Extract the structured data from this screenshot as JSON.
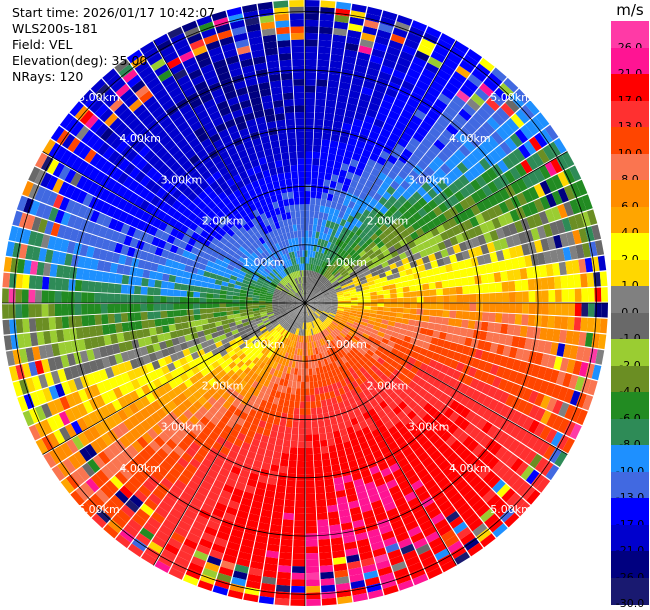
{
  "header": {
    "start_time": "Start time: 2026/01/17 10:42:07",
    "instrument": "WLS200s-181",
    "field": "Field: VEL",
    "elevation": "Elevation(deg): 35.00",
    "nrays": "NRays: 120"
  },
  "colorbar": {
    "unit": "m/s",
    "levels": [
      {
        "label": "26.0",
        "color": "#ff3aa6"
      },
      {
        "label": "21.0",
        "color": "#ff1493"
      },
      {
        "label": "17.0",
        "color": "#ff0000"
      },
      {
        "label": "13.0",
        "color": "#ff3030"
      },
      {
        "label": "10.0",
        "color": "#ff4500"
      },
      {
        "label": "8.0",
        "color": "#fa7550"
      },
      {
        "label": "6.0",
        "color": "#ff8c00"
      },
      {
        "label": "4.0",
        "color": "#ffa500"
      },
      {
        "label": "2.0",
        "color": "#ffff00"
      },
      {
        "label": "1.0",
        "color": "#ffd700"
      },
      {
        "label": "0.0",
        "color": "#808080"
      },
      {
        "label": "-1.0",
        "color": "#696969"
      },
      {
        "label": "-2.0",
        "color": "#9acd32"
      },
      {
        "label": "-4.0",
        "color": "#6b8e23"
      },
      {
        "label": "-6.0",
        "color": "#228b22"
      },
      {
        "label": "-8.0",
        "color": "#2e8b57"
      },
      {
        "label": "-10.0",
        "color": "#1e90ff"
      },
      {
        "label": "-13.0",
        "color": "#4169e1"
      },
      {
        "label": "-17.0",
        "color": "#0000ff"
      },
      {
        "label": "-21.0",
        "color": "#0000cd"
      },
      {
        "label": "-26.0",
        "color": "#000080"
      },
      {
        "label": "-30.0",
        "color": "#191970"
      }
    ]
  },
  "chart_data": {
    "type": "heatmap",
    "projection": "polar PPI",
    "field": "VEL",
    "units": "m/s",
    "elevation_deg": 35.0,
    "n_rays": 120,
    "range_rings_km": [
      1,
      2,
      3,
      4,
      5
    ],
    "ring_labels": [
      "1.00km",
      "2.00km",
      "3.00km",
      "4.00km",
      "5.00km"
    ],
    "max_range_km": 5.2,
    "velocity_pattern": {
      "description": "approximate dipole wind field",
      "peak_positive_ms": 21.0,
      "peak_negative_ms": -21.0,
      "positive_lobe_azimuth_deg": 150,
      "negative_lobe_azimuth_deg": 330
    }
  }
}
